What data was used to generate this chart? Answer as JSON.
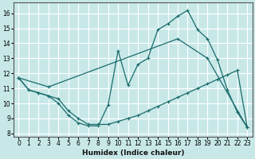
{
  "xlabel": "Humidex (Indice chaleur)",
  "background_color": "#c8e8e8",
  "grid_color": "#ffffff",
  "line_color": "#1a6b6b",
  "xlim": [
    -0.5,
    23.5
  ],
  "ylim": [
    7.8,
    16.7
  ],
  "yticks": [
    8,
    9,
    10,
    11,
    12,
    13,
    14,
    15,
    16
  ],
  "xticks": [
    0,
    1,
    2,
    3,
    4,
    5,
    6,
    7,
    8,
    9,
    10,
    11,
    12,
    13,
    14,
    15,
    16,
    17,
    18,
    19,
    20,
    21,
    22,
    23
  ],
  "line1_x": [
    0,
    1,
    2,
    3,
    4,
    5,
    6,
    7,
    8,
    9,
    10,
    11,
    12,
    13,
    14,
    15,
    16,
    17,
    18,
    19,
    20,
    21,
    22,
    23
  ],
  "line1_y": [
    11.7,
    10.9,
    10.7,
    10.5,
    10.0,
    9.2,
    8.7,
    8.5,
    8.5,
    9.9,
    13.5,
    11.2,
    12.6,
    13.0,
    14.9,
    15.3,
    15.8,
    16.2,
    14.9,
    14.3,
    12.9,
    10.9,
    9.4,
    8.4
  ],
  "line2_x": [
    0,
    3,
    16,
    19,
    23
  ],
  "line2_y": [
    11.7,
    11.1,
    14.3,
    13.0,
    8.4
  ],
  "line3_x": [
    0,
    1,
    2,
    3,
    4,
    5,
    6,
    7,
    8,
    9,
    10,
    11,
    12,
    13,
    14,
    15,
    16,
    17,
    18,
    19,
    20,
    21,
    22,
    23
  ],
  "line3_y": [
    11.7,
    10.9,
    10.7,
    10.5,
    10.3,
    9.5,
    9.0,
    8.6,
    8.6,
    8.6,
    8.8,
    9.0,
    9.2,
    9.5,
    9.8,
    10.1,
    10.4,
    10.7,
    11.0,
    11.3,
    11.6,
    11.9,
    12.2,
    8.4
  ]
}
